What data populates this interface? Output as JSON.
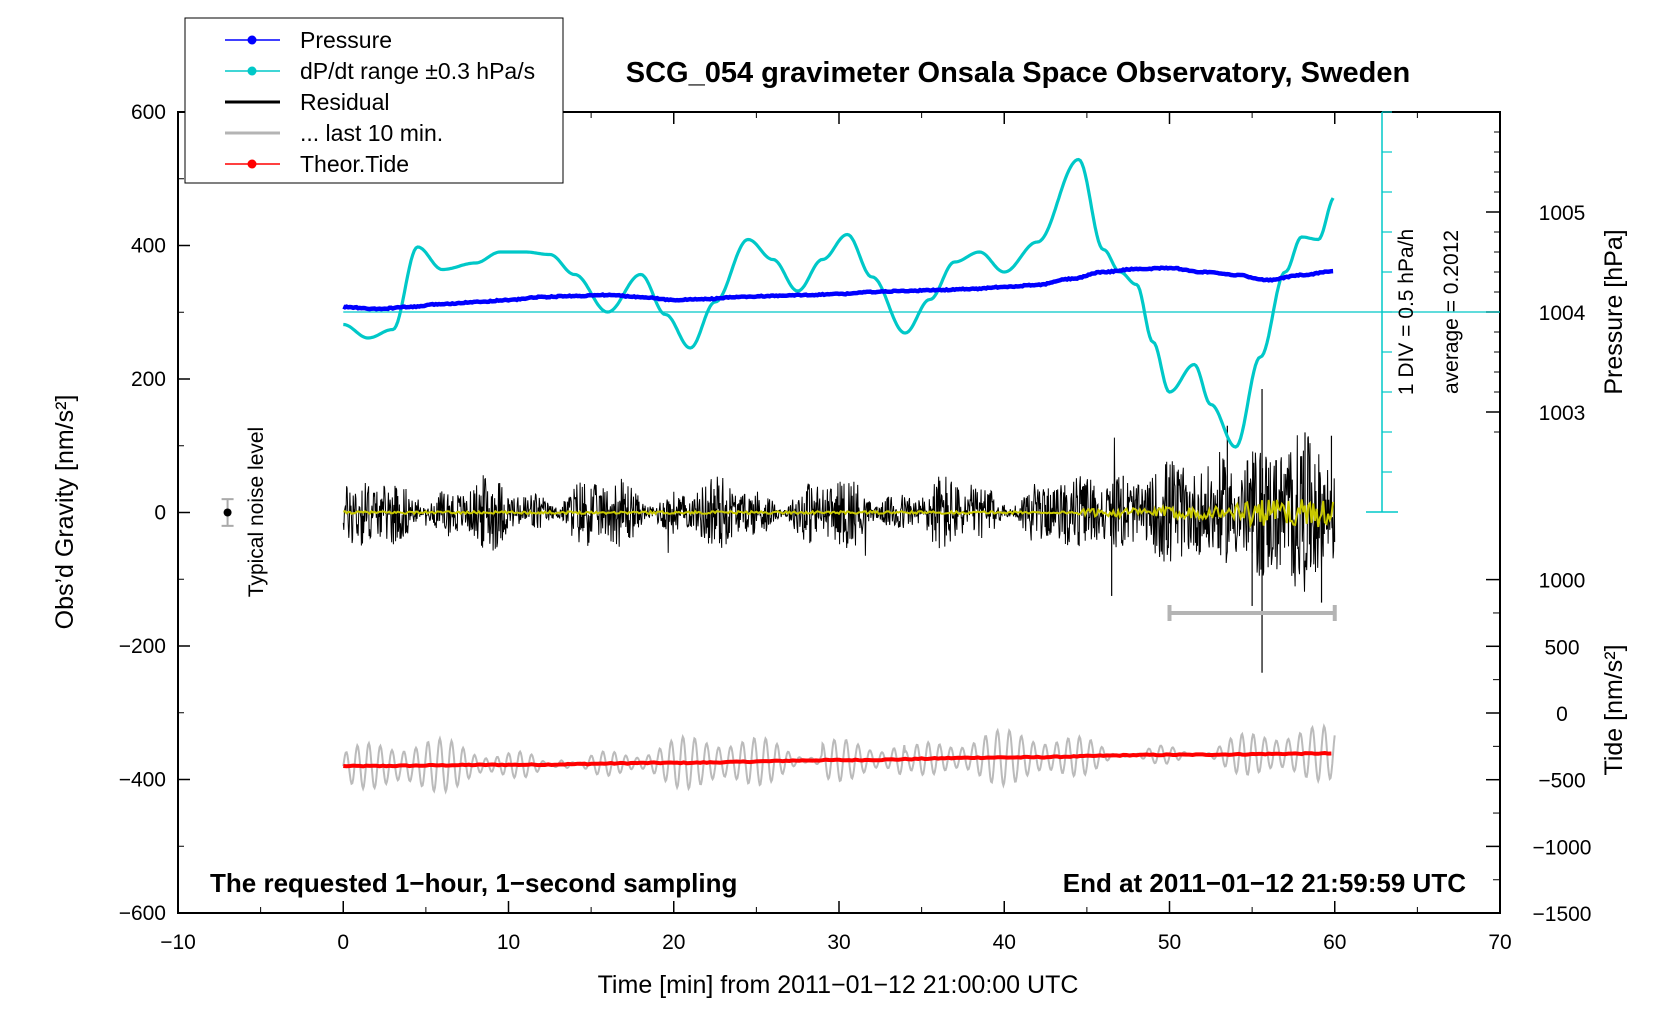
{
  "title": "SCG_054 gravimeter Onsala Space Observatory, Sweden",
  "footer": {
    "left": "The requested 1−hour, 1−second sampling",
    "right": "End at 2011−01−12 21:59:59 UTC"
  },
  "legend": {
    "entries": [
      {
        "label": "Pressure",
        "color": "#0000ff",
        "marker": true
      },
      {
        "label": "dP/dt range ±0.3 hPa/s",
        "color": "#00c8c8",
        "marker": true
      },
      {
        "label": "Residual",
        "color": "#000000",
        "marker": false
      },
      {
        "label": "... last 10 min.",
        "color": "#b4b4b4",
        "marker": false
      },
      {
        "label": "Theor.Tide",
        "color": "#ff0000",
        "marker": true
      }
    ]
  },
  "annotations": {
    "noise": "Typical noise level",
    "div": "1 DIV = 0.5 hPa/h",
    "average": "average = 0.2012"
  },
  "axes": {
    "x": {
      "label": "Time [min] from 2011−01−12 21:00:00 UTC",
      "ticks": [
        "−10",
        "0",
        "10",
        "20",
        "30",
        "40",
        "50",
        "60",
        "70"
      ],
      "range": [
        -10,
        70
      ]
    },
    "y_left": {
      "label": "Obs’d Gravity [nm/s²]",
      "ticks": [
        "−600",
        "−400",
        "−200",
        "0",
        "200",
        "400",
        "600"
      ],
      "range": [
        -600,
        600
      ]
    },
    "y_right_pressure": {
      "label": "Pressure [hPa]",
      "ticks": [
        "1003",
        "1004",
        "1005"
      ]
    },
    "y_right_tide": {
      "label": "Tide [nm/s²]",
      "ticks": [
        "−1500",
        "−1000",
        "−500",
        "0",
        "500",
        "1000"
      ]
    }
  },
  "colors": {
    "pressure": "#0000ff",
    "dpdt": "#00c8c8",
    "residual": "#000000",
    "residual_recent": "#b4b4b4",
    "smooth": "#c8c800",
    "tide": "#ff0000",
    "tide_residual": "#bbbbbb"
  },
  "chart_data": {
    "type": "line",
    "title": "SCG_054 gravimeter Onsala Space Observatory, Sweden",
    "xlabel": "Time [min] from 2011−01−12 21:00:00 UTC",
    "ylabel": "Obs’d Gravity [nm/s²]",
    "xlim": [
      -10,
      70
    ],
    "ylim": [
      -600,
      600
    ],
    "series": [
      {
        "name": "Pressure",
        "axis": "Pressure [hPa]",
        "x": [
          0,
          2,
          4,
          6,
          8,
          10,
          12,
          14,
          16,
          18,
          20,
          22,
          24,
          26,
          28,
          30,
          32,
          34,
          36,
          38,
          40,
          42,
          44,
          46,
          48,
          50,
          52,
          54,
          56,
          58,
          60
        ],
        "values": [
          1004.05,
          1004.03,
          1004.05,
          1004.08,
          1004.1,
          1004.12,
          1004.15,
          1004.16,
          1004.17,
          1004.15,
          1004.12,
          1004.13,
          1004.15,
          1004.16,
          1004.17,
          1004.18,
          1004.2,
          1004.21,
          1004.22,
          1004.23,
          1004.25,
          1004.27,
          1004.33,
          1004.4,
          1004.43,
          1004.44,
          1004.4,
          1004.37,
          1004.32,
          1004.37,
          1004.41
        ]
      },
      {
        "name": "dP/dt range ±0.3 hPa/s",
        "axis": "dP/dt (1 DIV = 0.5 hPa/h, avg line at 1004 hPa level)",
        "x": [
          0,
          1.5,
          3,
          4.5,
          6,
          8,
          9.5,
          11,
          12.5,
          14,
          16,
          18,
          19.5,
          21,
          22.5,
          24.5,
          26,
          27.5,
          29,
          30.5,
          32,
          34,
          35.5,
          37,
          38.5,
          40,
          42,
          44.5,
          46,
          47,
          48,
          49,
          50,
          51.5,
          52.5,
          54,
          55.5,
          57,
          58,
          59,
          60
        ],
        "values": [
          4.15,
          3.88,
          4.05,
          5.7,
          5.25,
          5.38,
          5.6,
          5.6,
          5.55,
          5.15,
          4.4,
          5.15,
          4.35,
          3.68,
          4.6,
          5.85,
          5.45,
          4.82,
          5.45,
          5.95,
          5.1,
          3.98,
          4.65,
          5.4,
          5.6,
          5.2,
          5.8,
          7.45,
          5.65,
          5.2,
          4.95,
          3.8,
          2.8,
          3.35,
          2.55,
          1.7,
          3.5,
          5.2,
          5.9,
          5.85,
          6.7
        ]
      },
      {
        "name": "Residual",
        "x": [
          0,
          5,
          10,
          15,
          20,
          25,
          30,
          35,
          40,
          45,
          50,
          55,
          60
        ],
        "values": [
          0,
          1,
          -1,
          0,
          1,
          0,
          0,
          1,
          0,
          -2,
          3,
          -4,
          8
        ]
      },
      {
        "name": "Theor.Tide",
        "axis": "Tide [nm/s²]",
        "x": [
          0,
          10,
          20,
          30,
          40,
          50,
          60
        ],
        "values": [
          -380,
          -378,
          -375,
          -371,
          -367,
          -363,
          -361
        ]
      }
    ],
    "noise_level": {
      "x": -7,
      "center": 0,
      "plus_minus": 20
    },
    "recent_window": {
      "x_start": 50,
      "x_end": 60
    }
  }
}
